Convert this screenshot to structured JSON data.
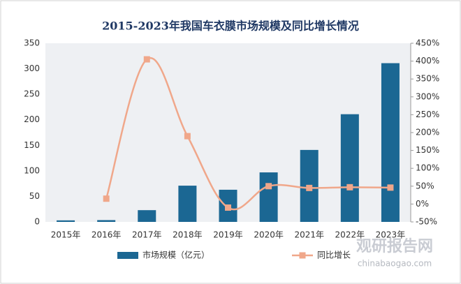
{
  "chart_data": {
    "type": "bar-line",
    "title": "2015-2023年我国车衣膜市场规模及同比增长情况",
    "categories": [
      "2015年",
      "2016年",
      "2017年",
      "2018年",
      "2019年",
      "2020年",
      "2021年",
      "2022年",
      "2023年"
    ],
    "series": [
      {
        "name": "市场规模（亿元）",
        "type": "bar",
        "color": "#1b6793",
        "values": [
          3,
          3.5,
          23,
          71,
          63,
          97,
          141,
          211,
          311
        ]
      },
      {
        "name": "同比增长",
        "type": "line",
        "axis": "y2",
        "color": "#f0a78a",
        "values": [
          null,
          15,
          405,
          190,
          -10,
          50,
          45,
          47,
          46
        ]
      }
    ],
    "ylim": [
      0,
      350
    ],
    "yticks": [
      0,
      50,
      100,
      150,
      200,
      250,
      300,
      350
    ],
    "y2lim": [
      -50,
      450
    ],
    "y2ticks": [
      {
        "value": -50,
        "label": "-50%"
      },
      {
        "value": 0,
        "label": "0%"
      },
      {
        "value": 50,
        "label": "50%"
      },
      {
        "value": 100,
        "label": "100%"
      },
      {
        "value": 150,
        "label": "150%"
      },
      {
        "value": 200,
        "label": "200%"
      },
      {
        "value": 250,
        "label": "250%"
      },
      {
        "value": 300,
        "label": "300%"
      },
      {
        "value": 350,
        "label": "350%"
      },
      {
        "value": 400,
        "label": "400%"
      },
      {
        "value": 450,
        "label": "450%"
      }
    ],
    "grid": false,
    "legend": "bottom",
    "watermark": {
      "name": "观研报告网",
      "url": "chinabaogao.com"
    }
  }
}
